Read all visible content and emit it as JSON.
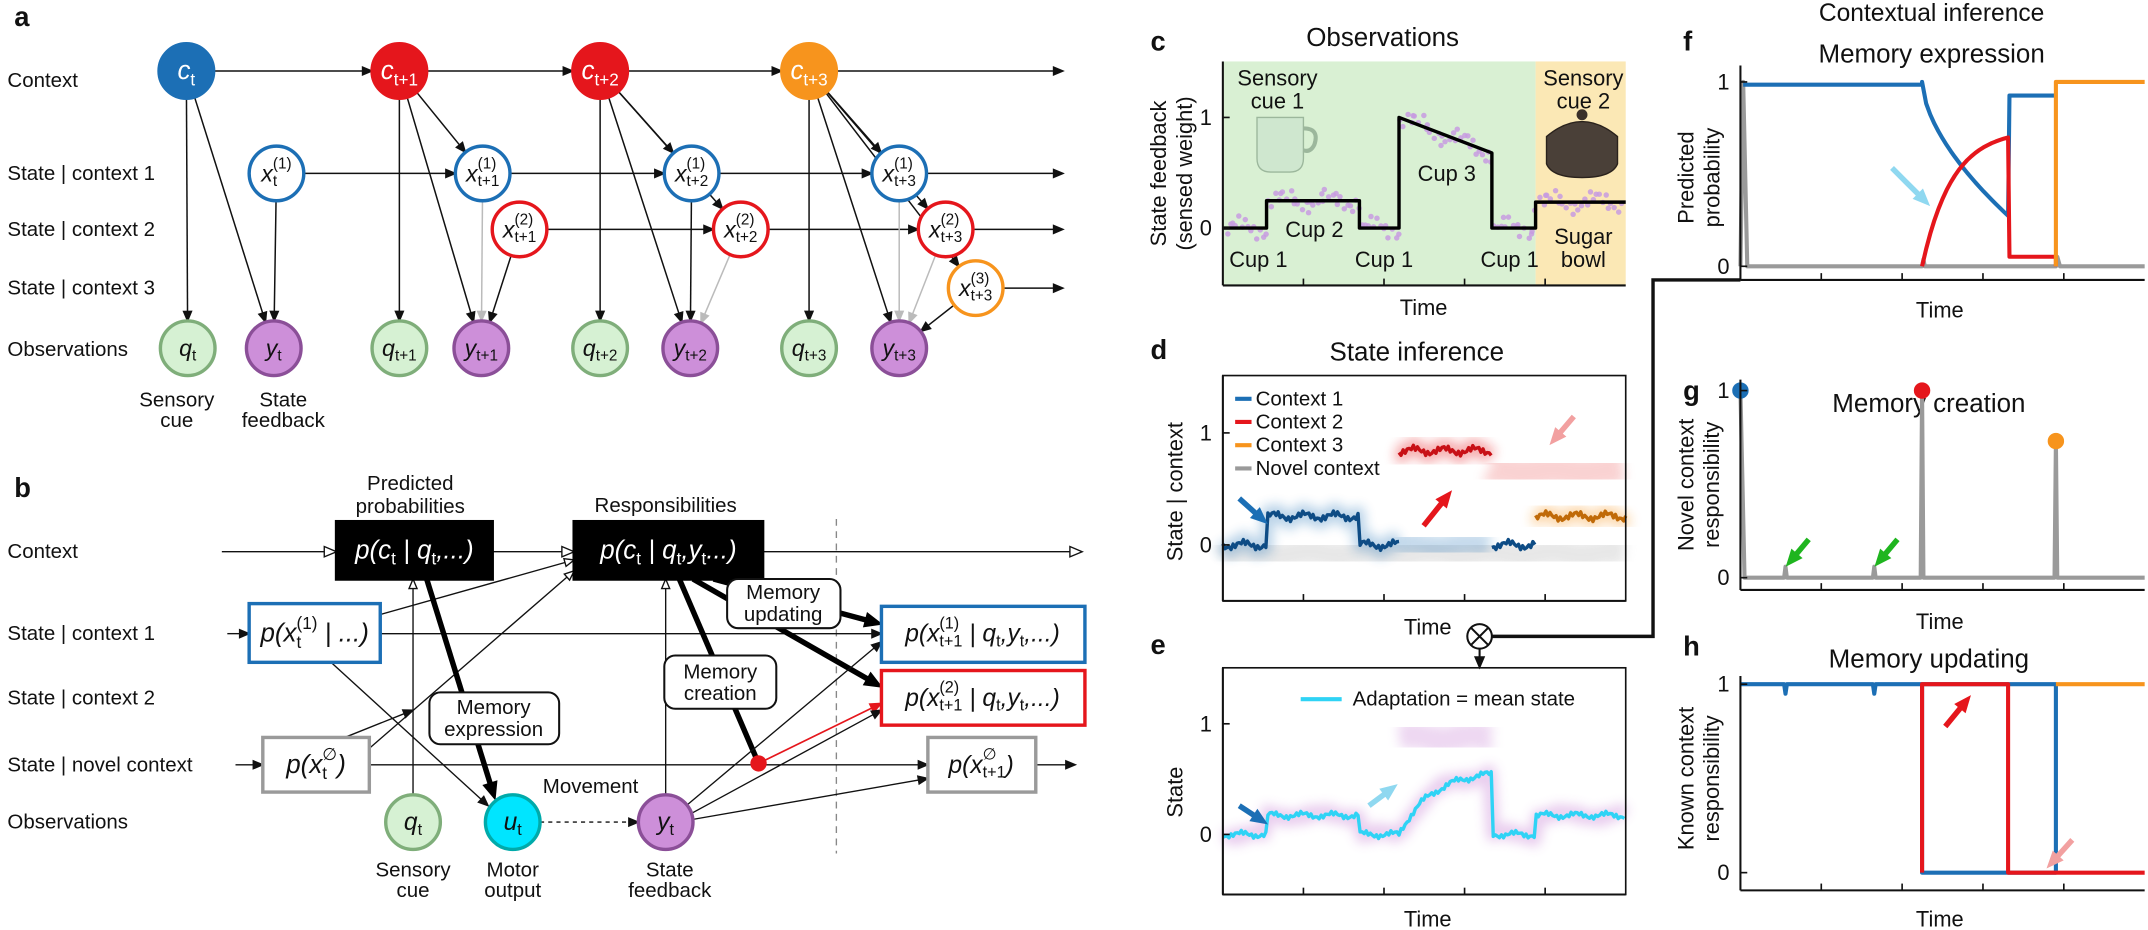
{
  "panel_a": {
    "label": "a",
    "row_labels": [
      "Context",
      "State | context 1",
      "State | context 2",
      "State | context 3",
      "Observations"
    ],
    "context_nodes": [
      {
        "text": "c",
        "sub": "t"
      },
      {
        "text": "c",
        "sub": "t+1"
      },
      {
        "text": "c",
        "sub": "t+2"
      },
      {
        "text": "c",
        "sub": "t+3"
      }
    ],
    "state_nodes": [
      {
        "text": "x",
        "sub": "t",
        "sup": "(1)"
      },
      {
        "text": "x",
        "sub": "t+1",
        "sup": "(1)"
      },
      {
        "text": "x",
        "sub": "t+2",
        "sup": "(1)"
      },
      {
        "text": "x",
        "sub": "t+3",
        "sup": "(1)"
      },
      {
        "text": "x",
        "sub": "t+1",
        "sup": "(2)"
      },
      {
        "text": "x",
        "sub": "t+2",
        "sup": "(2)"
      },
      {
        "text": "x",
        "sub": "t+3",
        "sup": "(2)"
      },
      {
        "text": "x",
        "sub": "t+3",
        "sup": "(3)"
      }
    ],
    "cue_nodes": [
      {
        "text": "q",
        "sub": "t"
      },
      {
        "text": "q",
        "sub": "t+1"
      },
      {
        "text": "q",
        "sub": "t+2"
      },
      {
        "text": "q",
        "sub": "t+3"
      }
    ],
    "feedback_nodes": [
      {
        "text": "y",
        "sub": "t"
      },
      {
        "text": "y",
        "sub": "t+1"
      },
      {
        "text": "y",
        "sub": "t+2"
      },
      {
        "text": "y",
        "sub": "t+3"
      }
    ],
    "captions": [
      [
        "Sensory",
        "cue"
      ],
      [
        "State",
        "feedback"
      ]
    ]
  },
  "panel_b": {
    "label": "b",
    "row_labels": [
      "Context",
      "State | context 1",
      "State | context 2",
      "State | novel context",
      "Observations"
    ],
    "headers": [
      [
        "Predicted",
        "probabilities"
      ],
      [
        "Responsibilities"
      ]
    ],
    "formulas": [
      [
        {
          "text": "p(c",
          "sub": "t"
        },
        {
          "text": " | q",
          "sub": "t"
        },
        {
          "text": ",...)"
        }
      ],
      [
        {
          "text": "p(c",
          "sub": "t"
        },
        {
          "text": " | q",
          "sub": "t"
        },
        {
          "text": ",y",
          "sub": "t"
        },
        {
          "text": "...)"
        }
      ],
      [
        {
          "text": "p(x",
          "sub": "t",
          "sup": "(1)"
        },
        {
          "text": " | ...)"
        }
      ],
      [
        {
          "text": "p(x",
          "sub": "t",
          "sup": "∅"
        },
        {
          "text": ")"
        }
      ],
      [
        {
          "text": "p(x",
          "sub": "t+1",
          "sup": "(1)"
        },
        {
          "text": " | q",
          "sub": "t"
        },
        {
          "text": ",y",
          "sub": "t"
        },
        {
          "text": ",...)"
        }
      ],
      [
        {
          "text": "p(x",
          "sub": "t+1",
          "sup": "(2)"
        },
        {
          "text": " | q",
          "sub": "t"
        },
        {
          "text": ",y",
          "sub": "t"
        },
        {
          "text": ",...)"
        }
      ],
      [
        {
          "text": "p(x",
          "sub": "t+1",
          "sup": "∅"
        },
        {
          "text": ")"
        }
      ]
    ],
    "processes": [
      [
        "Memory",
        "expression"
      ],
      [
        "Memory",
        "creation"
      ],
      [
        "Memory",
        "updating"
      ]
    ],
    "nodes": [
      {
        "text": "q",
        "sub": "t"
      },
      {
        "text": "u",
        "sub": "t"
      },
      {
        "text": "y",
        "sub": "t"
      }
    ],
    "captions": [
      [
        "Sensory",
        "cue"
      ],
      [
        "Motor",
        "output"
      ],
      [
        "State",
        "feedback"
      ]
    ],
    "movement": "Movement"
  },
  "panel_c": {
    "label": "c",
    "title": "Observations",
    "y_label": [
      "State feedback",
      "(sensed weight)"
    ],
    "yticks": [
      0,
      1
    ],
    "x_label": "Time",
    "annotations": [
      [
        "Sensory",
        "cue 1"
      ],
      [
        "Cup 1"
      ],
      [
        "Cup 2"
      ],
      [
        "Cup 1"
      ],
      [
        "Cup 3"
      ],
      [
        "Cup 1"
      ],
      [
        "Sensory",
        "cue 2"
      ],
      [
        "Sugar",
        "bowl"
      ]
    ]
  },
  "panel_d": {
    "label": "d",
    "title": "State inference",
    "y_label": "State | context",
    "yticks": [
      0,
      1
    ],
    "x_label": "Time",
    "legend": [
      "Context 1",
      "Context 2",
      "Context 3",
      "Novel context"
    ]
  },
  "panel_e": {
    "label": "e",
    "y_label": "State",
    "yticks": [
      0,
      1
    ],
    "x_label": "Time",
    "legend": "Adaptation = mean state"
  },
  "panel_f": {
    "label": "f",
    "heading": "Contextual inference",
    "title": "Memory expression",
    "y_label": [
      "Predicted",
      "probability"
    ],
    "yticks": [
      0,
      1
    ],
    "x_label": "Time"
  },
  "panel_g": {
    "label": "g",
    "title": "Memory creation",
    "y_label": [
      "Novel context",
      "responsibility"
    ],
    "yticks": [
      0,
      1
    ],
    "x_label": "Time"
  },
  "panel_h": {
    "label": "h",
    "title": "Memory updating",
    "y_label": [
      "Known context",
      "responsibility"
    ],
    "yticks": [
      0,
      1
    ],
    "x_label": "Time"
  }
}
